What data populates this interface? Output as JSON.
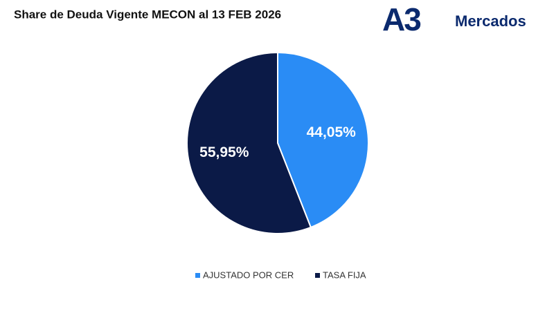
{
  "chart_data": {
    "type": "pie",
    "title": "Share de Deuda Vigente MECON al 13 FEB 2026",
    "categories": [
      "AJUSTADO POR CER",
      "TASA FIJA"
    ],
    "values": [
      44.05,
      55.95
    ],
    "value_labels": [
      "44,05%",
      "55,95%"
    ],
    "colors": [
      "#2a8cf5",
      "#0b1a47"
    ],
    "legend": "bottom"
  },
  "logo": {
    "mark": "A3",
    "name": "Mercados"
  }
}
